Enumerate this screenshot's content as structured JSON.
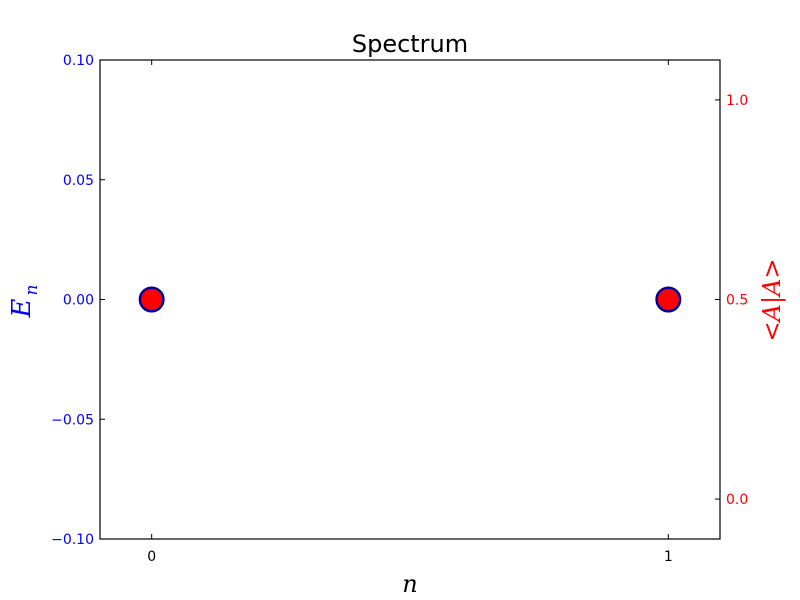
{
  "chart_data": {
    "type": "scatter",
    "title": "Spectrum",
    "xlabel": "n",
    "ylabel_left": {
      "main": "E",
      "sub": "n"
    },
    "ylabel_right": "<A|A>",
    "xlim": [
      -0.1,
      1.1
    ],
    "ylim_left": [
      -0.1,
      0.1
    ],
    "ylim_right": [
      -0.1,
      1.1
    ],
    "x_ticks": [
      0,
      1
    ],
    "x_tick_labels": [
      "0",
      "1"
    ],
    "y_left_ticks": [
      0.1,
      0.05,
      0.0,
      -0.05,
      -0.1
    ],
    "y_left_tick_labels": [
      "0.10",
      "0.05",
      "0.00",
      "−0.05",
      "−0.10"
    ],
    "y_right_ticks": [
      1.0,
      0.5,
      0.0
    ],
    "y_right_tick_labels": [
      "1.0",
      "0.5",
      "0.0"
    ],
    "series": [
      {
        "name": "E_n",
        "axis": "left",
        "x": [
          0,
          1
        ],
        "y": [
          0.0,
          0.0
        ],
        "color": "#0000ff",
        "edge_color": "#000080"
      },
      {
        "name": "<A|A>",
        "axis": "right",
        "x": [
          0,
          1
        ],
        "y": [
          0.5,
          0.5
        ],
        "color": "#ff0000"
      }
    ],
    "colors": {
      "left_axis": "#0000ff",
      "right_axis": "#ff0000",
      "frame": "#000000"
    }
  }
}
